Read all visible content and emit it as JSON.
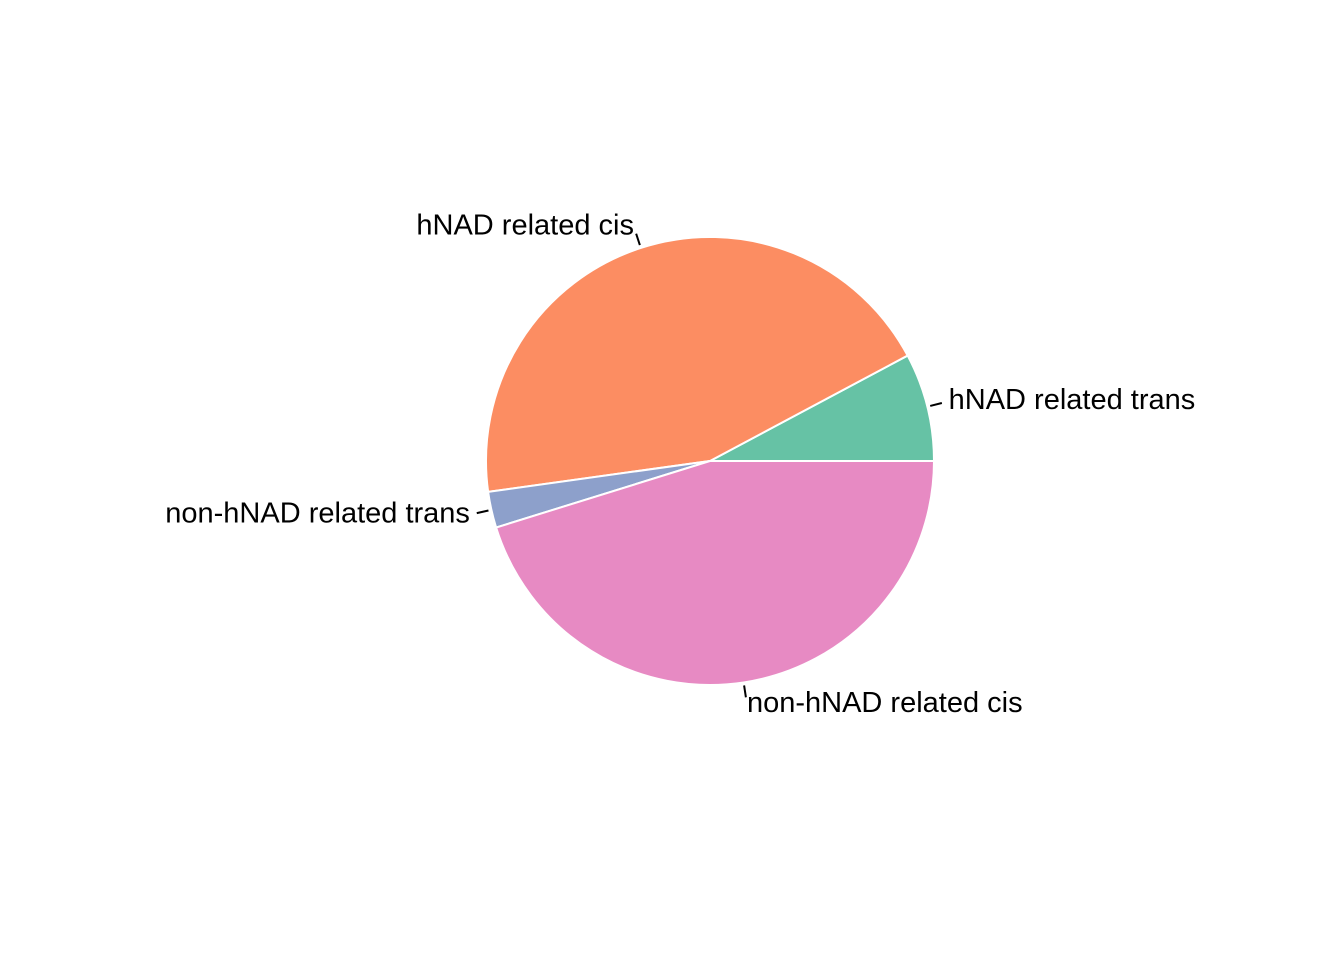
{
  "chart_data": {
    "type": "pie",
    "categories": [
      "hNAD related trans",
      "hNAD related cis",
      "non-hNAD related trans",
      "non-hNAD related cis"
    ],
    "values": [
      7.8,
      44.4,
      2.6,
      45.2
    ],
    "colors": [
      "#66c2a5",
      "#fc8d62",
      "#8da0cb",
      "#e78ac3"
    ]
  }
}
